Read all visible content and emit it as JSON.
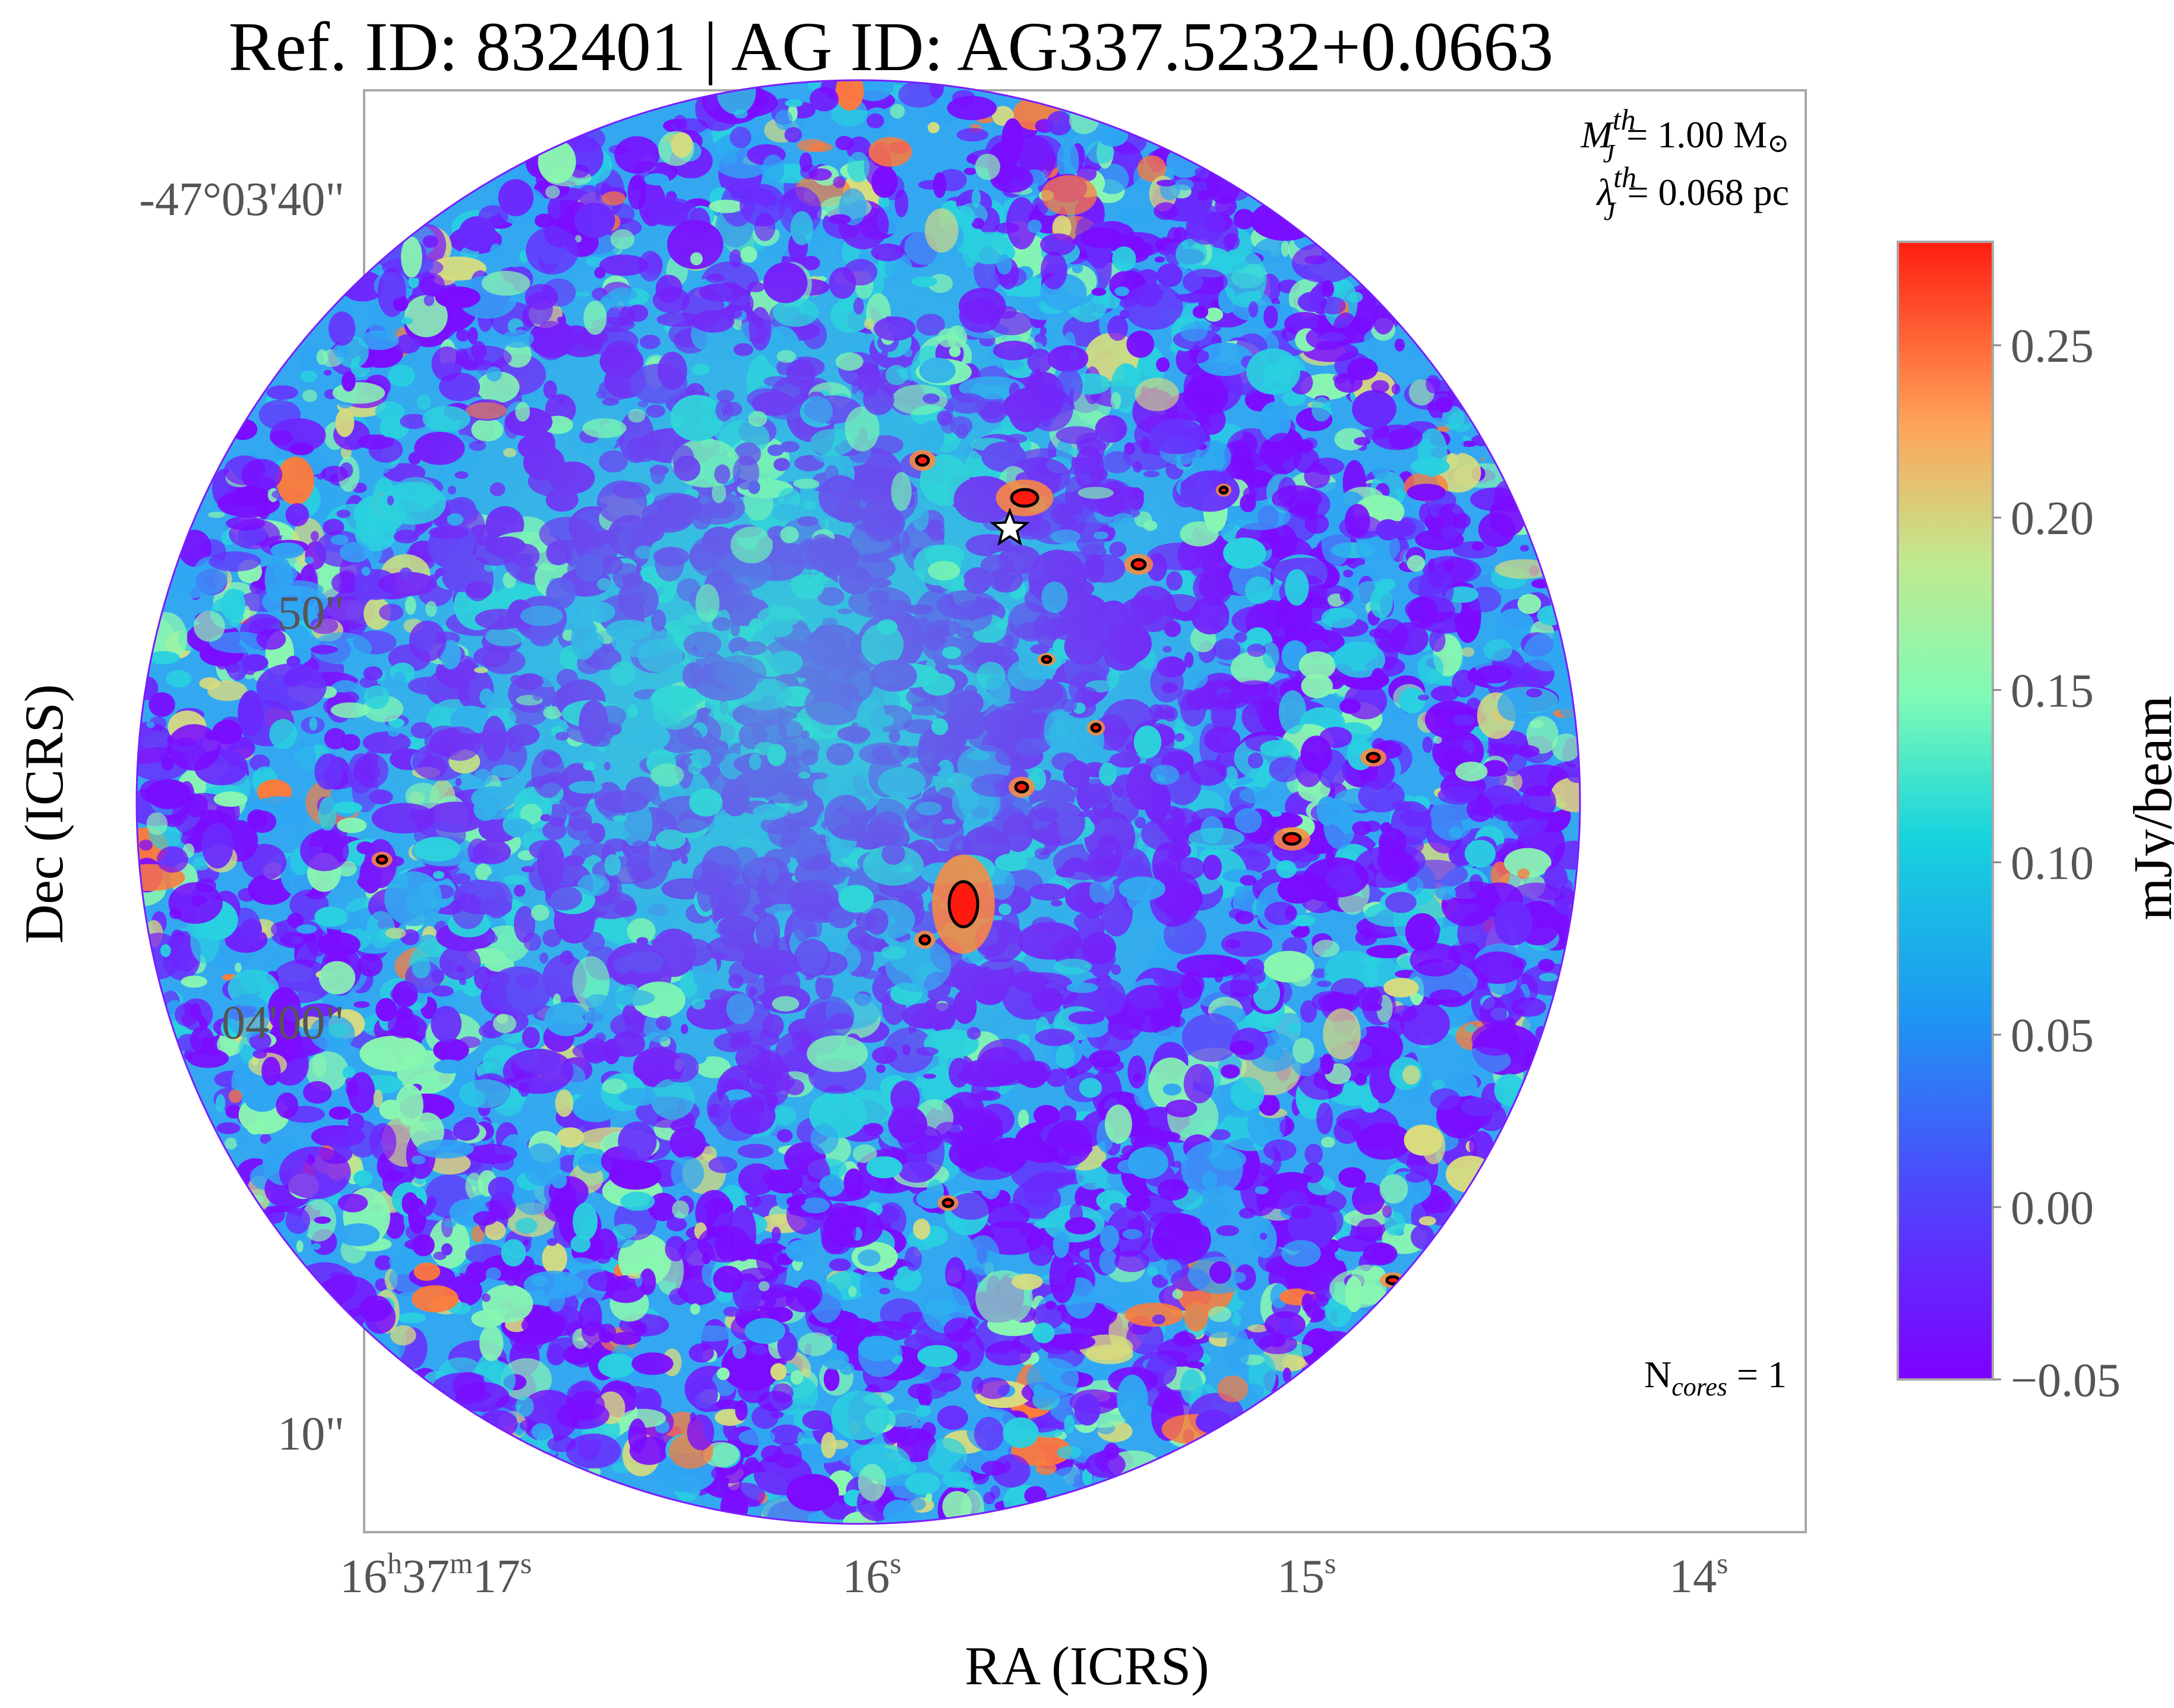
{
  "chart_data": {
    "type": "heatmap",
    "title": "Ref. ID: 832401 | AG ID: AG337.5232+0.0663",
    "xlabel": "RA (ICRS)",
    "ylabel": "Dec (ICRS)",
    "x_ticks": [
      {
        "base": "16",
        "h": "h",
        "mid": "37",
        "m": "m",
        "last": "17",
        "s": "s"
      },
      {
        "base": "16",
        "s": "s"
      },
      {
        "base": "15",
        "s": "s"
      },
      {
        "base": "14",
        "s": "s"
      }
    ],
    "y_ticks": [
      "-47°03'40\"",
      "50\"",
      "04'00\"",
      "10\""
    ],
    "colorbar": {
      "label": "mJy/beam",
      "min": -0.05,
      "max": 0.28,
      "ticks": [
        "0.25",
        "0.20",
        "0.15",
        "0.10",
        "0.05",
        "0.00",
        "−0.05"
      ],
      "tick_values": [
        0.25,
        0.2,
        0.15,
        0.1,
        0.05,
        0.0,
        -0.05
      ],
      "colormap": "rainbow"
    },
    "annotations": {
      "mass_symbol": "M",
      "mass_sup": "th",
      "mass_sub": "J",
      "mass_value": "= 1.00 M",
      "mass_sun": "⊙",
      "lambda_symbol": "λ",
      "lambda_sup": "th",
      "lambda_sub": "J",
      "lambda_value": "= 0.068 pc",
      "ncores_base": "N",
      "ncores_sub": "cores",
      "ncores_value": " = 1"
    },
    "marker": {
      "type": "star"
    },
    "grid": false
  }
}
